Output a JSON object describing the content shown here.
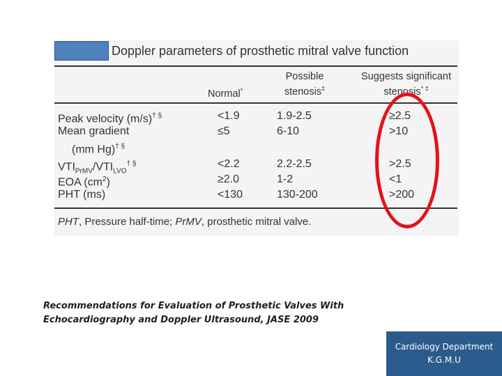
{
  "slide": {
    "title": "Doppler parameters of prosthetic mitral valve function",
    "headers": {
      "normal": "Normal",
      "normal_mark": "*",
      "possible_line1": "Possible",
      "possible_line2": "stenosis",
      "possible_mark": "‡",
      "suggests_line1": "Suggests significant",
      "suggests_line2": "stenosis",
      "suggests_mark": "* ‡"
    },
    "rows": [
      {
        "label": "Peak velocity (m/s)",
        "mark": "† §",
        "normal": "<1.9",
        "possible": "1.9-2.5",
        "significant": "≥2.5"
      },
      {
        "label": "Mean gradient",
        "mark": "",
        "normal": "≤5",
        "possible": "6-10",
        "significant": ">10"
      },
      {
        "label": "(mm Hg)",
        "mark": "† §",
        "normal": "",
        "possible": "",
        "significant": ""
      },
      {
        "label": "VTI",
        "label_sub1": "PrMV",
        "label_mid": "/VTI",
        "label_sub2": "LVO",
        "mark": "† §",
        "normal": "<2.2",
        "possible": "2.2-2.5",
        "significant": ">2.5"
      },
      {
        "label": "EOA (cm",
        "label_sup": "2",
        "label_end": ")",
        "mark": "",
        "normal": "≥2.0",
        "possible": "1-2",
        "significant": "<1"
      },
      {
        "label": "PHT (ms)",
        "mark": "",
        "normal": "<130",
        "possible": "130-200",
        "significant": ">200"
      }
    ],
    "footnote": {
      "pht_abbr": "PHT",
      "pht_text": ", Pressure half-time; ",
      "prmv_abbr": "PrMV",
      "prmv_text": ", prosthetic mitral valve."
    },
    "citation_line1": "Recommendations for Evaluation of Prosthetic Valves With",
    "citation_line2": "Echocardiography and Doppler Ultrasound, JASE 2009",
    "department_line1": "Cardiology Department",
    "department_line2": "K.G.M.U",
    "colors": {
      "accent_box": "#4f81bd",
      "highlight_ellipse": "#e3121c",
      "dept_box": "#2a5b8c"
    }
  }
}
